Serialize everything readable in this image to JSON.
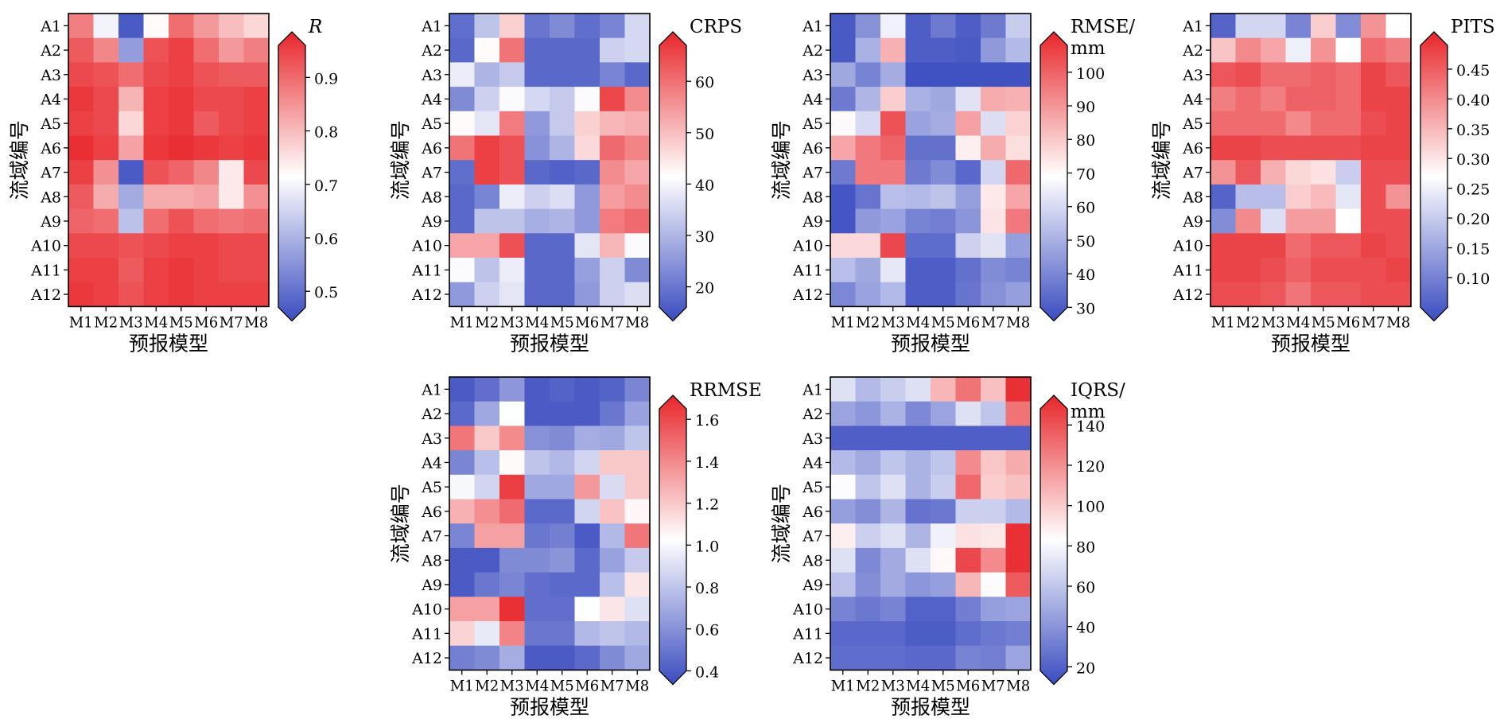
{
  "chart_data": [
    {
      "type": "heatmap",
      "x_categories": [
        "M1",
        "M2",
        "M3",
        "M4",
        "M5",
        "M6",
        "M7",
        "M8"
      ],
      "y_categories": [
        "A1",
        "A2",
        "A3",
        "A4",
        "A5",
        "A6",
        "A7",
        "A8",
        "A9",
        "A10",
        "A11",
        "A12"
      ],
      "xlabel": "预报模型",
      "ylabel": "流域编号",
      "colorbar": {
        "title": [
          "R"
        ],
        "italic": true,
        "range": [
          0.47,
          0.96
        ],
        "ticks": [
          0.5,
          0.6,
          0.7,
          0.8,
          0.9
        ],
        "tick_labels": [
          "0.5",
          "0.6",
          "0.7",
          "0.8",
          "0.9"
        ],
        "colors": [
          "#3b4cc0",
          "#ffffff",
          "#e8262b"
        ]
      },
      "values": [
        [
          0.86,
          0.7,
          0.49,
          0.72,
          0.88,
          0.83,
          0.79,
          0.76
        ],
        [
          0.9,
          0.85,
          0.58,
          0.91,
          0.93,
          0.88,
          0.83,
          0.86
        ],
        [
          0.92,
          0.91,
          0.88,
          0.92,
          0.93,
          0.91,
          0.9,
          0.9
        ],
        [
          0.94,
          0.92,
          0.8,
          0.93,
          0.94,
          0.92,
          0.92,
          0.93
        ],
        [
          0.93,
          0.92,
          0.76,
          0.93,
          0.94,
          0.9,
          0.92,
          0.93
        ],
        [
          0.95,
          0.93,
          0.82,
          0.94,
          0.95,
          0.94,
          0.93,
          0.94
        ],
        [
          0.93,
          0.84,
          0.49,
          0.91,
          0.89,
          0.85,
          0.74,
          0.92
        ],
        [
          0.9,
          0.81,
          0.6,
          0.81,
          0.81,
          0.82,
          0.74,
          0.84
        ],
        [
          0.89,
          0.88,
          0.63,
          0.88,
          0.91,
          0.88,
          0.87,
          0.88
        ],
        [
          0.92,
          0.92,
          0.91,
          0.92,
          0.93,
          0.93,
          0.92,
          0.92
        ],
        [
          0.93,
          0.93,
          0.9,
          0.93,
          0.94,
          0.93,
          0.92,
          0.92
        ],
        [
          0.94,
          0.93,
          0.91,
          0.93,
          0.94,
          0.93,
          0.93,
          0.93
        ]
      ]
    },
    {
      "type": "heatmap",
      "x_categories": [
        "M1",
        "M2",
        "M3",
        "M4",
        "M5",
        "M6",
        "M7",
        "M8"
      ],
      "y_categories": [
        "A1",
        "A2",
        "A3",
        "A4",
        "A5",
        "A6",
        "A7",
        "A8",
        "A9",
        "A10",
        "A11",
        "A12"
      ],
      "xlabel": "预报模型",
      "ylabel": "流域编号",
      "colorbar": {
        "title": [
          "CRPS"
        ],
        "italic": false,
        "range": [
          16,
          67
        ],
        "ticks": [
          20,
          30,
          40,
          50,
          60
        ],
        "tick_labels": [
          "20",
          "30",
          "40",
          "50",
          "60"
        ],
        "colors": [
          "#3b4cc0",
          "#ffffff",
          "#e8262b"
        ]
      },
      "values": [
        [
          21,
          33,
          47,
          22,
          25,
          21,
          24,
          36
        ],
        [
          20,
          42,
          58,
          20,
          20,
          20,
          35,
          36
        ],
        [
          39,
          31,
          34,
          20,
          20,
          20,
          24,
          20
        ],
        [
          25,
          35,
          41,
          36,
          34,
          41,
          63,
          55
        ],
        [
          42,
          38,
          57,
          27,
          34,
          47,
          50,
          51
        ],
        [
          58,
          64,
          62,
          26,
          31,
          46,
          59,
          56
        ],
        [
          21,
          64,
          62,
          20,
          19,
          20,
          55,
          52
        ],
        [
          20,
          24,
          39,
          35,
          37,
          27,
          53,
          55
        ],
        [
          20,
          33,
          33,
          30,
          31,
          27,
          57,
          59
        ],
        [
          52,
          52,
          62,
          20,
          20,
          38,
          50,
          41
        ],
        [
          41,
          33,
          39,
          20,
          20,
          28,
          35,
          25
        ],
        [
          27,
          35,
          38,
          20,
          20,
          27,
          35,
          37
        ]
      ]
    },
    {
      "type": "heatmap",
      "x_categories": [
        "M1",
        "M2",
        "M3",
        "M4",
        "M5",
        "M6",
        "M7",
        "M8"
      ],
      "y_categories": [
        "A1",
        "A2",
        "A3",
        "A4",
        "A5",
        "A6",
        "A7",
        "A8",
        "A9",
        "A10",
        "A11",
        "A12"
      ],
      "xlabel": "预报模型",
      "ylabel": "流域编号",
      "colorbar": {
        "title": [
          "RMSE/",
          "mm"
        ],
        "italic": false,
        "range": [
          30,
          108
        ],
        "ticks": [
          30,
          40,
          50,
          60,
          70,
          80,
          90,
          100
        ],
        "tick_labels": [
          "30",
          "40",
          "50",
          "60",
          "70",
          "80",
          "90",
          "100"
        ],
        "colors": [
          "#3b4cc0",
          "#ffffff",
          "#e8262b"
        ]
      },
      "values": [
        [
          33,
          45,
          66,
          34,
          40,
          34,
          40,
          58
        ],
        [
          33,
          52,
          83,
          34,
          34,
          33,
          47,
          54
        ],
        [
          50,
          42,
          51,
          31,
          31,
          31,
          31,
          31
        ],
        [
          40,
          53,
          78,
          52,
          50,
          63,
          84,
          83
        ],
        [
          70,
          61,
          100,
          49,
          51,
          86,
          62,
          77
        ],
        [
          85,
          93,
          97,
          38,
          38,
          72,
          84,
          75
        ],
        [
          40,
          93,
          93,
          40,
          44,
          36,
          60,
          96
        ],
        [
          32,
          39,
          55,
          54,
          56,
          48,
          73,
          85
        ],
        [
          32,
          47,
          49,
          42,
          41,
          46,
          74,
          93
        ],
        [
          76,
          76,
          102,
          37,
          37,
          59,
          63,
          48
        ],
        [
          55,
          50,
          64,
          34,
          34,
          38,
          44,
          42
        ],
        [
          43,
          49,
          54,
          34,
          34,
          39,
          45,
          48
        ]
      ]
    },
    {
      "type": "heatmap",
      "x_categories": [
        "M1",
        "M2",
        "M3",
        "M4",
        "M5",
        "M6",
        "M7",
        "M8"
      ],
      "y_categories": [
        "A1",
        "A2",
        "A3",
        "A4",
        "A5",
        "A6",
        "A7",
        "A8",
        "A9",
        "A10",
        "A11",
        "A12"
      ],
      "xlabel": "预报模型",
      "ylabel": "流域编号",
      "colorbar": {
        "title": [
          "PITS"
        ],
        "italic": false,
        "range": [
          0.05,
          0.49
        ],
        "ticks": [
          0.1,
          0.15,
          0.2,
          0.25,
          0.3,
          0.35,
          0.4,
          0.45
        ],
        "tick_labels": [
          "0.10",
          "0.15",
          "0.20",
          "0.25",
          "0.30",
          "0.35",
          "0.40",
          "0.45"
        ],
        "colors": [
          "#3b4cc0",
          "#ffffff",
          "#e8262b"
        ]
      },
      "values": [
        [
          0.08,
          0.22,
          0.22,
          0.12,
          0.32,
          0.13,
          0.38,
          0.27
        ],
        [
          0.33,
          0.39,
          0.36,
          0.25,
          0.38,
          0.27,
          0.42,
          0.4
        ],
        [
          0.44,
          0.45,
          0.42,
          0.42,
          0.43,
          0.42,
          0.46,
          0.44
        ],
        [
          0.4,
          0.42,
          0.4,
          0.43,
          0.43,
          0.42,
          0.46,
          0.46
        ],
        [
          0.42,
          0.42,
          0.42,
          0.39,
          0.42,
          0.42,
          0.45,
          0.46
        ],
        [
          0.46,
          0.46,
          0.45,
          0.45,
          0.45,
          0.45,
          0.46,
          0.46
        ],
        [
          0.38,
          0.44,
          0.35,
          0.31,
          0.3,
          0.21,
          0.45,
          0.45
        ],
        [
          0.08,
          0.19,
          0.19,
          0.32,
          0.34,
          0.24,
          0.45,
          0.38
        ],
        [
          0.13,
          0.39,
          0.23,
          0.37,
          0.37,
          0.27,
          0.45,
          0.45
        ],
        [
          0.46,
          0.46,
          0.46,
          0.42,
          0.44,
          0.44,
          0.46,
          0.45
        ],
        [
          0.46,
          0.46,
          0.45,
          0.43,
          0.45,
          0.45,
          0.45,
          0.46
        ],
        [
          0.45,
          0.45,
          0.44,
          0.41,
          0.44,
          0.44,
          0.45,
          0.45
        ]
      ]
    },
    {
      "type": "heatmap",
      "x_categories": [
        "M1",
        "M2",
        "M3",
        "M4",
        "M5",
        "M6",
        "M7",
        "M8"
      ],
      "y_categories": [
        "A1",
        "A2",
        "A3",
        "A4",
        "A5",
        "A6",
        "A7",
        "A8",
        "A9",
        "A10",
        "A11",
        "A12"
      ],
      "xlabel": "预报模型",
      "ylabel": "流域编号",
      "colorbar": {
        "title": [
          "RRMSE"
        ],
        "italic": false,
        "range": [
          0.4,
          1.65
        ],
        "ticks": [
          0.4,
          0.6,
          0.8,
          1.0,
          1.2,
          1.4,
          1.6
        ],
        "tick_labels": [
          "0.4",
          "0.6",
          "0.8",
          "1.0",
          "1.2",
          "1.4",
          "1.6"
        ],
        "colors": [
          "#3b4cc0",
          "#ffffff",
          "#e8262b"
        ]
      },
      "values": [
        [
          0.45,
          0.52,
          0.66,
          0.45,
          0.48,
          0.45,
          0.48,
          0.6
        ],
        [
          0.5,
          0.72,
          1.02,
          0.45,
          0.45,
          0.45,
          0.55,
          0.7
        ],
        [
          1.42,
          1.18,
          1.36,
          0.64,
          0.62,
          0.74,
          0.72,
          0.82
        ],
        [
          0.6,
          0.8,
          1.04,
          0.82,
          0.78,
          0.88,
          1.18,
          1.18
        ],
        [
          1.0,
          0.88,
          1.58,
          0.72,
          0.72,
          1.32,
          0.9,
          1.18
        ],
        [
          1.25,
          1.35,
          1.45,
          0.5,
          0.5,
          0.88,
          1.2,
          1.05
        ],
        [
          0.6,
          1.3,
          1.3,
          0.55,
          0.58,
          0.45,
          0.78,
          1.42
        ],
        [
          0.45,
          0.45,
          0.62,
          0.62,
          0.65,
          0.5,
          0.7,
          0.84
        ],
        [
          0.45,
          0.55,
          0.6,
          0.52,
          0.5,
          0.5,
          0.8,
          1.1
        ],
        [
          1.3,
          1.3,
          1.62,
          0.52,
          0.52,
          1.02,
          1.1,
          0.92
        ],
        [
          1.15,
          0.95,
          1.38,
          0.55,
          0.55,
          0.78,
          0.82,
          0.78
        ],
        [
          0.58,
          0.62,
          0.74,
          0.45,
          0.45,
          0.5,
          0.62,
          0.72
        ]
      ]
    },
    {
      "type": "heatmap",
      "x_categories": [
        "M1",
        "M2",
        "M3",
        "M4",
        "M5",
        "M6",
        "M7",
        "M8"
      ],
      "y_categories": [
        "A1",
        "A2",
        "A3",
        "A4",
        "A5",
        "A6",
        "A7",
        "A8",
        "A9",
        "A10",
        "A11",
        "A12"
      ],
      "xlabel": "预报模型",
      "ylabel": "流域编号",
      "colorbar": {
        "title": [
          "IQRS/",
          "mm"
        ],
        "italic": false,
        "range": [
          18,
          148
        ],
        "ticks": [
          20,
          40,
          60,
          80,
          100,
          120,
          140
        ],
        "tick_labels": [
          "20",
          "40",
          "60",
          "80",
          "100",
          "120",
          "140"
        ],
        "colors": [
          "#3b4cc0",
          "#ffffff",
          "#e8262b"
        ]
      },
      "values": [
        [
          72,
          58,
          65,
          72,
          105,
          125,
          102,
          145
        ],
        [
          50,
          45,
          55,
          40,
          50,
          72,
          62,
          125
        ],
        [
          25,
          25,
          25,
          25,
          25,
          25,
          25,
          25
        ],
        [
          58,
          52,
          62,
          55,
          62,
          118,
          100,
          108
        ],
        [
          82,
          62,
          72,
          55,
          65,
          128,
          98,
          102
        ],
        [
          48,
          42,
          56,
          32,
          34,
          66,
          66,
          58
        ],
        [
          88,
          66,
          72,
          56,
          78,
          92,
          90,
          145
        ],
        [
          72,
          40,
          52,
          72,
          85,
          138,
          118,
          145
        ],
        [
          60,
          42,
          52,
          45,
          48,
          105,
          82,
          132
        ],
        [
          38,
          34,
          38,
          26,
          26,
          36,
          48,
          50
        ],
        [
          28,
          28,
          28,
          24,
          24,
          30,
          34,
          36
        ],
        [
          30,
          30,
          30,
          28,
          28,
          38,
          36,
          50
        ]
      ]
    }
  ]
}
